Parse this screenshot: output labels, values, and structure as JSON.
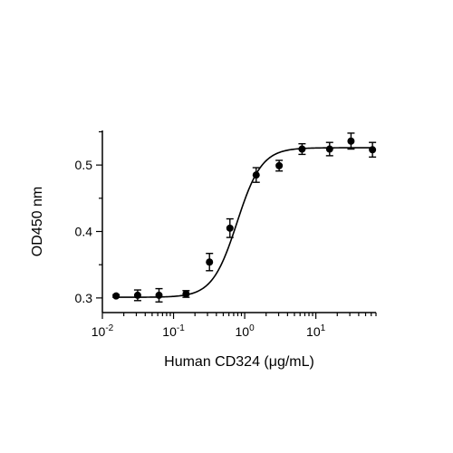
{
  "chart_data": {
    "type": "scatter",
    "xlabel": "Human CD324 (μg/mL)",
    "ylabel": "OD450 nm",
    "x_scale": "log",
    "xlim": [
      0.01,
      70
    ],
    "ylim": [
      0.278,
      0.552
    ],
    "x_ticks": [
      {
        "value": 0.01,
        "base": "10",
        "exp": "-2"
      },
      {
        "value": 0.1,
        "base": "10",
        "exp": "-1"
      },
      {
        "value": 1,
        "base": "10",
        "exp": "0"
      },
      {
        "value": 10,
        "base": "10",
        "exp": "1"
      }
    ],
    "y_ticks": [
      {
        "value": 0.3,
        "label": "0.3"
      },
      {
        "value": 0.4,
        "label": "0.4"
      },
      {
        "value": 0.5,
        "label": "0.5"
      }
    ],
    "series": [
      {
        "points": [
          {
            "x": 0.0156,
            "y": 0.303,
            "err": 0.002
          },
          {
            "x": 0.0313,
            "y": 0.304,
            "err": 0.008
          },
          {
            "x": 0.0625,
            "y": 0.304,
            "err": 0.01
          },
          {
            "x": 0.15,
            "y": 0.306,
            "err": 0.005
          },
          {
            "x": 0.32,
            "y": 0.354,
            "err": 0.013
          },
          {
            "x": 0.62,
            "y": 0.405,
            "err": 0.014
          },
          {
            "x": 1.45,
            "y": 0.485,
            "err": 0.011
          },
          {
            "x": 3.05,
            "y": 0.499,
            "err": 0.008
          },
          {
            "x": 6.4,
            "y": 0.524,
            "err": 0.008
          },
          {
            "x": 15.6,
            "y": 0.524,
            "err": 0.01
          },
          {
            "x": 31.2,
            "y": 0.536,
            "err": 0.012
          },
          {
            "x": 62.5,
            "y": 0.523,
            "err": 0.011
          }
        ]
      }
    ],
    "fit_curve": {
      "bottom": 0.301,
      "top": 0.526,
      "ec50": 0.78,
      "hill": 2.5
    },
    "grid": false,
    "colors": {
      "marker": "#000000",
      "line": "#000000"
    }
  }
}
